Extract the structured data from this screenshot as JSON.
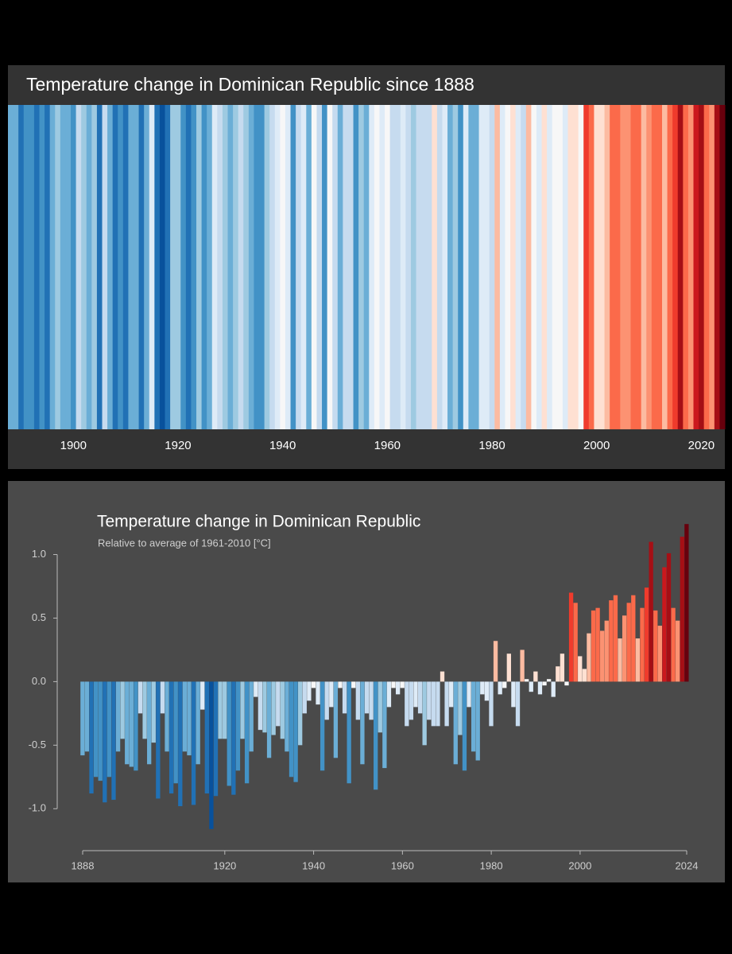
{
  "chart_data": [
    {
      "type": "stripes",
      "title": "Temperature change in Dominican Republic since 1888",
      "x": [
        1888,
        1889,
        1890,
        1891,
        1892,
        1893,
        1894,
        1895,
        1896,
        1897,
        1898,
        1899,
        1900,
        1901,
        1902,
        1903,
        1904,
        1905,
        1906,
        1907,
        1908,
        1909,
        1910,
        1911,
        1912,
        1913,
        1914,
        1915,
        1916,
        1917,
        1918,
        1919,
        1920,
        1921,
        1922,
        1923,
        1924,
        1925,
        1926,
        1927,
        1928,
        1929,
        1930,
        1931,
        1932,
        1933,
        1934,
        1935,
        1936,
        1937,
        1938,
        1939,
        1940,
        1941,
        1942,
        1943,
        1944,
        1945,
        1946,
        1947,
        1948,
        1949,
        1950,
        1951,
        1952,
        1953,
        1954,
        1955,
        1956,
        1957,
        1958,
        1959,
        1960,
        1961,
        1962,
        1963,
        1964,
        1965,
        1966,
        1967,
        1968,
        1969,
        1970,
        1971,
        1972,
        1973,
        1974,
        1975,
        1976,
        1977,
        1978,
        1979,
        1980,
        1981,
        1982,
        1983,
        1984,
        1985,
        1986,
        1987,
        1988,
        1989,
        1990,
        1991,
        1992,
        1993,
        1994,
        1995,
        1996,
        1997,
        1998,
        1999,
        2000,
        2001,
        2002,
        2003,
        2004,
        2005,
        2006,
        2007,
        2008,
        2009,
        2010,
        2011,
        2012,
        2013,
        2014,
        2015,
        2016,
        2017,
        2018,
        2019,
        2020,
        2021,
        2022,
        2023,
        2024
      ],
      "values": [
        -0.58,
        -0.55,
        -0.88,
        -0.75,
        -0.78,
        -0.95,
        -0.75,
        -0.93,
        -0.55,
        -0.45,
        -0.65,
        -0.67,
        -0.7,
        -0.25,
        -0.45,
        -0.65,
        -0.48,
        -0.92,
        -0.25,
        -0.55,
        -0.88,
        -0.8,
        -0.98,
        -0.55,
        -0.58,
        -0.97,
        -0.65,
        -0.22,
        -0.88,
        -1.16,
        -0.9,
        -0.45,
        -0.45,
        -0.82,
        -0.89,
        -0.7,
        -0.45,
        -0.8,
        -0.55,
        -0.12,
        -0.38,
        -0.4,
        -0.6,
        -0.42,
        -0.35,
        -0.45,
        -0.55,
        -0.75,
        -0.79,
        -0.5,
        -0.25,
        -0.15,
        -0.05,
        -0.18,
        -0.7,
        -0.3,
        -0.2,
        -0.6,
        -0.05,
        -0.25,
        -0.8,
        -0.05,
        -0.3,
        -0.65,
        -0.25,
        -0.3,
        -0.85,
        -0.4,
        -0.68,
        -0.2,
        -0.05,
        -0.1,
        -0.05,
        -0.35,
        -0.3,
        -0.2,
        -0.25,
        -0.5,
        -0.3,
        -0.35,
        -0.35,
        0.08,
        -0.35,
        -0.2,
        -0.65,
        -0.42,
        -0.7,
        -0.2,
        -0.55,
        -0.62,
        -0.1,
        -0.15,
        -0.35,
        0.32,
        -0.1,
        -0.05,
        0.22,
        -0.2,
        -0.35,
        0.25,
        0.02,
        -0.08,
        0.08,
        -0.1,
        -0.03,
        0.02,
        -0.12,
        0.12,
        0.22,
        -0.03,
        0.7,
        0.62,
        0.2,
        0.1,
        0.38,
        0.56,
        0.58,
        0.4,
        0.48,
        0.64,
        0.68,
        0.34,
        0.52,
        0.62,
        0.68,
        0.34,
        0.58,
        0.74,
        1.1,
        0.56,
        0.44,
        0.9,
        1.01,
        0.58,
        0.48,
        1.14,
        1.24
      ],
      "xlim": [
        1888,
        2025
      ],
      "xticks": [
        1900,
        1920,
        1940,
        1960,
        1980,
        2000,
        2020
      ],
      "colors": [
        "#08306b",
        "#08519c",
        "#2171b5",
        "#4292c6",
        "#6baed6",
        "#9ecae1",
        "#c6dbef",
        "#deebf7",
        "#f7f7f7",
        "#fee0d2",
        "#fcbba1",
        "#fc9272",
        "#fb6a4a",
        "#ef3b2c",
        "#cb181d",
        "#a50f15",
        "#67000d"
      ]
    },
    {
      "type": "bar",
      "title": "Temperature change in Dominican Republic",
      "subtitle": "Relative to average of 1961-2010  [°C]",
      "x": [
        1888,
        1889,
        1890,
        1891,
        1892,
        1893,
        1894,
        1895,
        1896,
        1897,
        1898,
        1899,
        1900,
        1901,
        1902,
        1903,
        1904,
        1905,
        1906,
        1907,
        1908,
        1909,
        1910,
        1911,
        1912,
        1913,
        1914,
        1915,
        1916,
        1917,
        1918,
        1919,
        1920,
        1921,
        1922,
        1923,
        1924,
        1925,
        1926,
        1927,
        1928,
        1929,
        1930,
        1931,
        1932,
        1933,
        1934,
        1935,
        1936,
        1937,
        1938,
        1939,
        1940,
        1941,
        1942,
        1943,
        1944,
        1945,
        1946,
        1947,
        1948,
        1949,
        1950,
        1951,
        1952,
        1953,
        1954,
        1955,
        1956,
        1957,
        1958,
        1959,
        1960,
        1961,
        1962,
        1963,
        1964,
        1965,
        1966,
        1967,
        1968,
        1969,
        1970,
        1971,
        1972,
        1973,
        1974,
        1975,
        1976,
        1977,
        1978,
        1979,
        1980,
        1981,
        1982,
        1983,
        1984,
        1985,
        1986,
        1987,
        1988,
        1989,
        1990,
        1991,
        1992,
        1993,
        1994,
        1995,
        1996,
        1997,
        1998,
        1999,
        2000,
        2001,
        2002,
        2003,
        2004,
        2005,
        2006,
        2007,
        2008,
        2009,
        2010,
        2011,
        2012,
        2013,
        2014,
        2015,
        2016,
        2017,
        2018,
        2019,
        2020,
        2021,
        2022,
        2023,
        2024
      ],
      "values": [
        -0.58,
        -0.55,
        -0.88,
        -0.75,
        -0.78,
        -0.95,
        -0.75,
        -0.93,
        -0.55,
        -0.45,
        -0.65,
        -0.67,
        -0.7,
        -0.25,
        -0.45,
        -0.65,
        -0.48,
        -0.92,
        -0.25,
        -0.55,
        -0.88,
        -0.8,
        -0.98,
        -0.55,
        -0.58,
        -0.97,
        -0.65,
        -0.22,
        -0.88,
        -1.16,
        -0.9,
        -0.45,
        -0.45,
        -0.82,
        -0.89,
        -0.7,
        -0.45,
        -0.8,
        -0.55,
        -0.12,
        -0.38,
        -0.4,
        -0.6,
        -0.42,
        -0.35,
        -0.45,
        -0.55,
        -0.75,
        -0.79,
        -0.5,
        -0.25,
        -0.15,
        -0.05,
        -0.18,
        -0.7,
        -0.3,
        -0.2,
        -0.6,
        -0.05,
        -0.25,
        -0.8,
        -0.05,
        -0.3,
        -0.65,
        -0.25,
        -0.3,
        -0.85,
        -0.4,
        -0.68,
        -0.2,
        -0.05,
        -0.1,
        -0.05,
        -0.35,
        -0.3,
        -0.2,
        -0.25,
        -0.5,
        -0.3,
        -0.35,
        -0.35,
        0.08,
        -0.35,
        -0.2,
        -0.65,
        -0.42,
        -0.7,
        -0.2,
        -0.55,
        -0.62,
        -0.1,
        -0.15,
        -0.35,
        0.32,
        -0.1,
        -0.05,
        0.22,
        -0.2,
        -0.35,
        0.25,
        0.02,
        -0.08,
        0.08,
        -0.1,
        -0.03,
        0.02,
        -0.12,
        0.12,
        0.22,
        -0.03,
        0.7,
        0.62,
        0.2,
        0.1,
        0.38,
        0.56,
        0.58,
        0.4,
        0.48,
        0.64,
        0.68,
        0.34,
        0.52,
        0.62,
        0.68,
        0.34,
        0.58,
        0.74,
        1.1,
        0.56,
        0.44,
        0.9,
        1.01,
        0.58,
        0.48,
        1.14,
        1.24
      ],
      "xlim": [
        1888,
        2024
      ],
      "xticks": [
        1888,
        1920,
        1940,
        1960,
        1980,
        2000,
        2024
      ],
      "ylim": [
        -1.33,
        1.36
      ],
      "yticks": [
        {
          "value": 1,
          "label": "1.0"
        },
        {
          "value": 0.5,
          "label": "0.5"
        },
        {
          "value": 0,
          "label": "0.0"
        },
        {
          "value": -0.5,
          "label": "-0.5"
        },
        {
          "value": -1,
          "label": "-1.0"
        }
      ],
      "colors": [
        "#08306b",
        "#08519c",
        "#2171b5",
        "#4292c6",
        "#6baed6",
        "#9ecae1",
        "#c6dbef",
        "#deebf7",
        "#f7f7f7",
        "#fee0d2",
        "#fcbba1",
        "#fc9272",
        "#fb6a4a",
        "#ef3b2c",
        "#cb181d",
        "#a50f15",
        "#67000d"
      ]
    }
  ]
}
